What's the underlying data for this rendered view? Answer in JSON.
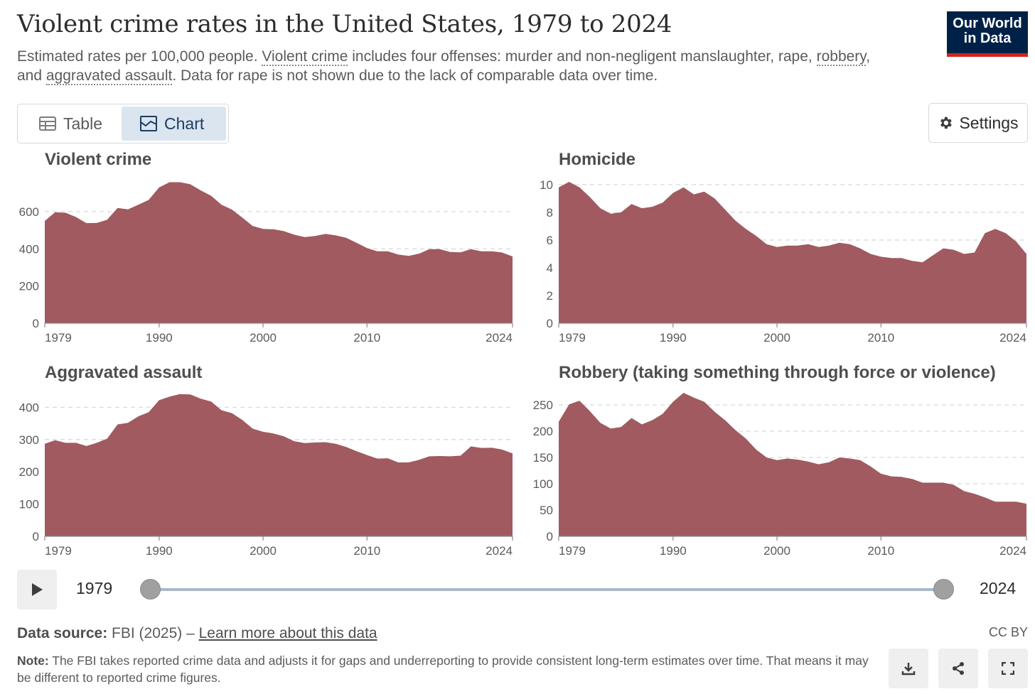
{
  "header": {
    "title": "Violent crime rates in the United States, 1979 to 2024",
    "subtitle_1": "Estimated rates per 100,000 people. ",
    "subtitle_violent_crime": "Violent crime",
    "subtitle_2": " includes four offenses: murder and non-negligent manslaughter, rape, ",
    "subtitle_robbery": "robbery",
    "subtitle_3": ", and ",
    "subtitle_aggravated_assault": "aggravated assault",
    "subtitle_4": ". Data for rape is not shown due to the lack of comparable data over time."
  },
  "logo": {
    "line1": "Our World",
    "line2": "in Data"
  },
  "tabs": {
    "table_label": "Table",
    "chart_label": "Chart",
    "active": "chart"
  },
  "settings": {
    "label": "Settings"
  },
  "timeline": {
    "start_label": "1979",
    "end_label": "2024",
    "start_year": 1979,
    "end_year": 2024
  },
  "footer": {
    "source_label": "Data source:",
    "source_value": " FBI (2025) – ",
    "source_link": "Learn more about this data",
    "license": "CC BY",
    "note_label": "Note:",
    "note_text": " The FBI takes reported crime data and adjusts it for gaps and underreporting to provide consistent long-term estimates over time. That means it may be different to reported crime figures."
  },
  "colors": {
    "area": "#a05a60",
    "grid": "#d9d9d9",
    "axis": "#5b5b5b"
  },
  "chart_data": [
    {
      "type": "area",
      "title": "Violent crime",
      "x": [
        1979,
        1980,
        1981,
        1982,
        1983,
        1984,
        1985,
        1986,
        1987,
        1988,
        1989,
        1990,
        1991,
        1992,
        1993,
        1994,
        1995,
        1996,
        1997,
        1998,
        1999,
        2000,
        2001,
        2002,
        2003,
        2004,
        2005,
        2006,
        2007,
        2008,
        2009,
        2010,
        2011,
        2012,
        2013,
        2014,
        2015,
        2016,
        2017,
        2018,
        2019,
        2020,
        2021,
        2022,
        2023,
        2024
      ],
      "values": [
        550,
        597,
        594,
        571,
        538,
        539,
        556,
        620,
        612,
        637,
        663,
        730,
        758,
        758,
        747,
        714,
        685,
        637,
        611,
        568,
        523,
        507,
        505,
        495,
        476,
        463,
        469,
        480,
        472,
        459,
        432,
        404,
        387,
        387,
        369,
        362,
        374,
        398,
        398,
        383,
        381,
        398,
        387,
        387,
        380,
        359
      ],
      "xticks": [
        1979,
        1990,
        2000,
        2010,
        2024
      ],
      "yticks": [
        0,
        200,
        400,
        600
      ],
      "ylim": [
        0,
        760
      ],
      "xlabel": "",
      "ylabel": ""
    },
    {
      "type": "area",
      "title": "Homicide",
      "x": [
        1979,
        1980,
        1981,
        1982,
        1983,
        1984,
        1985,
        1986,
        1987,
        1988,
        1989,
        1990,
        1991,
        1992,
        1993,
        1994,
        1995,
        1996,
        1997,
        1998,
        1999,
        2000,
        2001,
        2002,
        2003,
        2004,
        2005,
        2006,
        2007,
        2008,
        2009,
        2010,
        2011,
        2012,
        2013,
        2014,
        2015,
        2016,
        2017,
        2018,
        2019,
        2020,
        2021,
        2022,
        2023,
        2024
      ],
      "values": [
        9.8,
        10.2,
        9.8,
        9.1,
        8.3,
        7.9,
        8.0,
        8.6,
        8.3,
        8.4,
        8.7,
        9.4,
        9.8,
        9.3,
        9.5,
        9.0,
        8.2,
        7.4,
        6.8,
        6.3,
        5.7,
        5.5,
        5.6,
        5.6,
        5.7,
        5.5,
        5.6,
        5.8,
        5.7,
        5.4,
        5.0,
        4.8,
        4.7,
        4.7,
        4.5,
        4.4,
        4.9,
        5.4,
        5.3,
        5.0,
        5.1,
        6.5,
        6.8,
        6.5,
        5.9,
        5.0
      ],
      "xticks": [
        1979,
        1990,
        2000,
        2010,
        2024
      ],
      "yticks": [
        0,
        2,
        4,
        6,
        8,
        10
      ],
      "ylim": [
        0,
        10.2
      ],
      "xlabel": "",
      "ylabel": ""
    },
    {
      "type": "area",
      "title": "Aggravated assault",
      "x": [
        1979,
        1980,
        1981,
        1982,
        1983,
        1984,
        1985,
        1986,
        1987,
        1988,
        1989,
        1990,
        1991,
        1992,
        1993,
        1994,
        1995,
        1996,
        1997,
        1998,
        1999,
        2000,
        2001,
        2002,
        2003,
        2004,
        2005,
        2006,
        2007,
        2008,
        2009,
        2010,
        2011,
        2012,
        2013,
        2014,
        2015,
        2016,
        2017,
        2018,
        2019,
        2020,
        2021,
        2022,
        2023,
        2024
      ],
      "values": [
        287,
        298,
        290,
        290,
        280,
        290,
        303,
        347,
        352,
        372,
        385,
        422,
        433,
        441,
        440,
        427,
        418,
        391,
        382,
        361,
        334,
        324,
        319,
        310,
        295,
        289,
        291,
        292,
        287,
        277,
        264,
        252,
        241,
        242,
        229,
        229,
        237,
        248,
        249,
        248,
        250,
        279,
        274,
        275,
        269,
        257
      ],
      "xticks": [
        1979,
        1990,
        2000,
        2010,
        2024
      ],
      "yticks": [
        0,
        100,
        200,
        300,
        400
      ],
      "ylim": [
        0,
        445
      ],
      "xlabel": "",
      "ylabel": ""
    },
    {
      "type": "area",
      "title": "Robbery (taking something through force or violence)",
      "x": [
        1979,
        1980,
        1981,
        1982,
        1983,
        1984,
        1985,
        1986,
        1987,
        1988,
        1989,
        1990,
        1991,
        1992,
        1993,
        1994,
        1995,
        1996,
        1997,
        1998,
        1999,
        2000,
        2001,
        2002,
        2003,
        2004,
        2005,
        2006,
        2007,
        2008,
        2009,
        2010,
        2011,
        2012,
        2013,
        2014,
        2015,
        2016,
        2017,
        2018,
        2019,
        2020,
        2021,
        2022,
        2023,
        2024
      ],
      "values": [
        218,
        251,
        258,
        238,
        216,
        205,
        208,
        225,
        213,
        221,
        233,
        256,
        273,
        264,
        256,
        237,
        221,
        202,
        186,
        165,
        150,
        145,
        148,
        146,
        142,
        137,
        141,
        150,
        148,
        145,
        133,
        119,
        114,
        113,
        109,
        102,
        102,
        102,
        98,
        86,
        81,
        74,
        66,
        66,
        66,
        62
      ],
      "xticks": [
        1979,
        1990,
        2000,
        2010,
        2024
      ],
      "yticks": [
        0,
        50,
        100,
        150,
        200,
        250
      ],
      "ylim": [
        0,
        273
      ],
      "xlabel": "",
      "ylabel": ""
    }
  ]
}
